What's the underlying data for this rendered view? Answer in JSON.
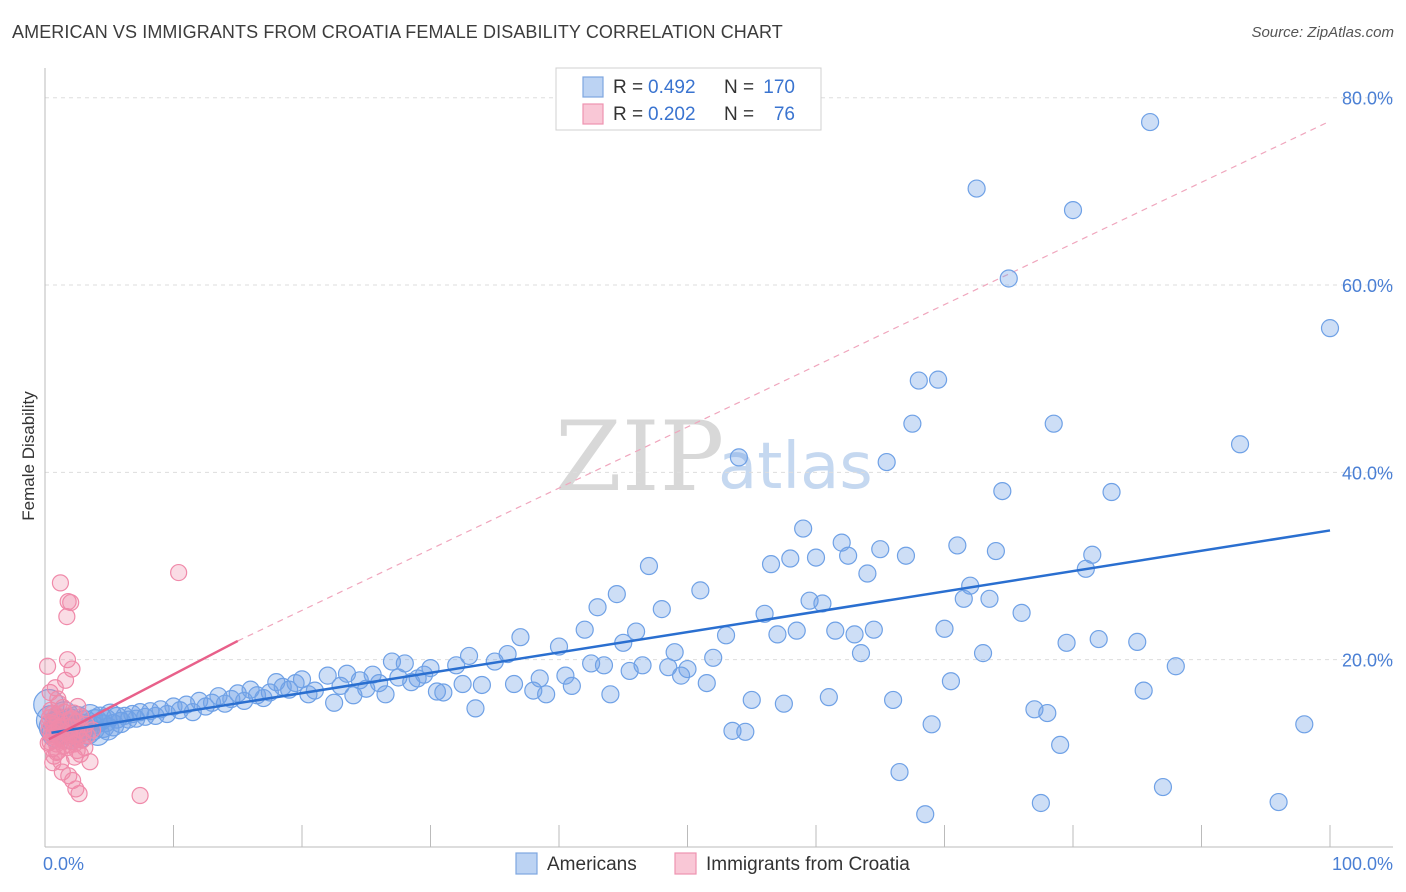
{
  "header": {
    "title": "AMERICAN VS IMMIGRANTS FROM CROATIA FEMALE DISABILITY CORRELATION CHART",
    "source": "Source: ZipAtlas.com"
  },
  "watermark": {
    "zip": "ZIP",
    "atlas": "atlas"
  },
  "colors": {
    "americans": "#6fa1e6",
    "americans_line": "#2a6fd0",
    "croatia": "#f08aaa",
    "croatia_line": "#e8608a",
    "grid": "#dddddd",
    "axis_label": "#4a7fd4"
  },
  "legend": {
    "rows": [
      {
        "r_label": "R = ",
        "r_value": "0.492",
        "n_label": "N = ",
        "n_value": "170"
      },
      {
        "r_label": "R = ",
        "r_value": "0.202",
        "n_label": "N = ",
        "n_value": "76"
      }
    ]
  },
  "chart_data": {
    "type": "scatter",
    "title": "AMERICAN VS IMMIGRANTS FROM CROATIA FEMALE DISABILITY CORRELATION CHART",
    "xlabel": "",
    "ylabel": "Female Disability",
    "xlim": [
      0,
      100
    ],
    "ylim": [
      0,
      82
    ],
    "x_tick_labels": [
      "0.0%",
      "100.0%"
    ],
    "y_ticks": [
      20,
      40,
      60,
      80
    ],
    "y_tick_labels": [
      "20.0%",
      "40.0%",
      "60.0%",
      "80.0%"
    ],
    "grid": true,
    "legend_position": "top-center",
    "bottom_legend": [
      "Americans",
      "Immigrants from Croatia"
    ],
    "series": [
      {
        "name": "Americans",
        "R": 0.492,
        "N": 170,
        "trend": {
          "x": [
            0.5,
            100
          ],
          "y": [
            12.2,
            33.8
          ]
        },
        "points": [
          [
            0.3,
            15.2
          ],
          [
            0.5,
            13.5
          ],
          [
            0.7,
            12.8
          ],
          [
            0.9,
            12.2
          ],
          [
            1.1,
            13.1
          ],
          [
            1.3,
            12.5
          ],
          [
            1.5,
            14.0
          ],
          [
            1.7,
            12.6
          ],
          [
            1.9,
            13.3
          ],
          [
            2.1,
            11.9
          ],
          [
            2.3,
            12.4
          ],
          [
            2.5,
            13.6
          ],
          [
            2.7,
            12.0
          ],
          [
            2.9,
            12.8
          ],
          [
            3.1,
            13.2
          ],
          [
            3.3,
            12.3
          ],
          [
            3.5,
            13.9
          ],
          [
            3.7,
            12.7
          ],
          [
            3.9,
            13.4
          ],
          [
            4.1,
            12.1
          ],
          [
            4.3,
            13.7
          ],
          [
            4.5,
            12.9
          ],
          [
            4.7,
            13.5
          ],
          [
            4.9,
            12.6
          ],
          [
            5.1,
            14.1
          ],
          [
            5.3,
            13.0
          ],
          [
            5.6,
            13.8
          ],
          [
            5.9,
            13.3
          ],
          [
            6.2,
            14.0
          ],
          [
            6.5,
            13.6
          ],
          [
            6.8,
            14.2
          ],
          [
            7.1,
            13.7
          ],
          [
            7.4,
            14.4
          ],
          [
            7.8,
            13.9
          ],
          [
            8.2,
            14.5
          ],
          [
            8.6,
            14.0
          ],
          [
            9.0,
            14.7
          ],
          [
            9.5,
            14.2
          ],
          [
            10,
            15.0
          ],
          [
            10.5,
            14.6
          ],
          [
            11,
            15.2
          ],
          [
            11.5,
            14.4
          ],
          [
            12,
            15.6
          ],
          [
            12.5,
            15.0
          ],
          [
            13,
            15.4
          ],
          [
            13.5,
            16.1
          ],
          [
            14,
            15.3
          ],
          [
            14.5,
            15.8
          ],
          [
            15,
            16.4
          ],
          [
            15.5,
            15.6
          ],
          [
            16,
            16.8
          ],
          [
            16.5,
            16.2
          ],
          [
            17,
            15.9
          ],
          [
            17.5,
            16.5
          ],
          [
            18,
            17.6
          ],
          [
            18.5,
            17.1
          ],
          [
            19,
            16.8
          ],
          [
            19.5,
            17.5
          ],
          [
            20,
            17.9
          ],
          [
            20.5,
            16.3
          ],
          [
            21,
            16.7
          ],
          [
            22,
            18.3
          ],
          [
            22.5,
            15.4
          ],
          [
            23,
            17.2
          ],
          [
            23.5,
            18.5
          ],
          [
            24,
            16.2
          ],
          [
            24.5,
            17.8
          ],
          [
            25,
            16.9
          ],
          [
            25.5,
            18.4
          ],
          [
            26,
            17.5
          ],
          [
            26.5,
            16.3
          ],
          [
            27,
            19.8
          ],
          [
            27.5,
            18.1
          ],
          [
            28,
            19.6
          ],
          [
            28.5,
            17.6
          ],
          [
            29,
            18.0
          ],
          [
            29.5,
            18.4
          ],
          [
            30,
            19.1
          ],
          [
            30.5,
            16.6
          ],
          [
            31,
            16.5
          ],
          [
            32,
            19.4
          ],
          [
            32.5,
            17.4
          ],
          [
            33,
            20.4
          ],
          [
            33.5,
            14.8
          ],
          [
            34,
            17.3
          ],
          [
            35,
            19.8
          ],
          [
            36,
            20.6
          ],
          [
            36.5,
            17.4
          ],
          [
            37,
            22.4
          ],
          [
            38,
            16.7
          ],
          [
            38.5,
            18.0
          ],
          [
            39,
            16.3
          ],
          [
            40,
            21.4
          ],
          [
            40.5,
            18.3
          ],
          [
            41,
            17.2
          ],
          [
            42,
            23.2
          ],
          [
            42.5,
            19.6
          ],
          [
            43,
            25.6
          ],
          [
            43.5,
            19.4
          ],
          [
            44,
            16.3
          ],
          [
            44.5,
            27.0
          ],
          [
            45,
            21.8
          ],
          [
            45.5,
            18.8
          ],
          [
            46,
            23.0
          ],
          [
            46.5,
            19.4
          ],
          [
            47,
            30.0
          ],
          [
            48,
            25.4
          ],
          [
            48.5,
            19.2
          ],
          [
            49,
            20.8
          ],
          [
            49.5,
            18.3
          ],
          [
            50,
            19.0
          ],
          [
            51,
            27.4
          ],
          [
            51.5,
            17.5
          ],
          [
            52,
            20.2
          ],
          [
            53,
            22.6
          ],
          [
            53.5,
            12.4
          ],
          [
            54,
            41.6
          ],
          [
            54.5,
            12.3
          ],
          [
            55,
            15.7
          ],
          [
            56,
            24.9
          ],
          [
            56.5,
            30.2
          ],
          [
            57,
            22.7
          ],
          [
            57.5,
            15.3
          ],
          [
            58,
            30.8
          ],
          [
            58.5,
            23.1
          ],
          [
            59,
            34.0
          ],
          [
            59.5,
            26.3
          ],
          [
            60,
            30.9
          ],
          [
            60.5,
            26.0
          ],
          [
            61,
            16.0
          ],
          [
            61.5,
            23.1
          ],
          [
            62,
            32.5
          ],
          [
            62.5,
            31.1
          ],
          [
            63,
            22.7
          ],
          [
            63.5,
            20.7
          ],
          [
            64,
            29.2
          ],
          [
            64.5,
            23.2
          ],
          [
            65,
            31.8
          ],
          [
            65.5,
            41.1
          ],
          [
            66,
            15.7
          ],
          [
            66.5,
            8.0
          ],
          [
            67,
            31.1
          ],
          [
            67.5,
            45.2
          ],
          [
            68,
            49.8
          ],
          [
            68.5,
            3.5
          ],
          [
            69,
            13.1
          ],
          [
            69.5,
            49.9
          ],
          [
            70,
            23.3
          ],
          [
            70.5,
            17.7
          ],
          [
            71,
            32.2
          ],
          [
            71.5,
            26.5
          ],
          [
            72,
            27.9
          ],
          [
            72.5,
            70.3
          ],
          [
            73,
            20.7
          ],
          [
            73.5,
            26.5
          ],
          [
            74,
            31.6
          ],
          [
            74.5,
            38.0
          ],
          [
            75,
            60.7
          ],
          [
            76,
            25.0
          ],
          [
            77,
            14.7
          ],
          [
            77.5,
            4.7
          ],
          [
            78,
            14.3
          ],
          [
            78.5,
            45.2
          ],
          [
            79,
            10.9
          ],
          [
            79.5,
            21.8
          ],
          [
            80,
            68.0
          ],
          [
            81,
            29.7
          ],
          [
            81.5,
            31.2
          ],
          [
            82,
            22.2
          ],
          [
            83,
            37.9
          ],
          [
            85,
            21.9
          ],
          [
            85.5,
            16.7
          ],
          [
            86,
            77.4
          ],
          [
            87,
            6.4
          ],
          [
            88,
            19.3
          ],
          [
            93,
            43.0
          ],
          [
            96,
            4.8
          ],
          [
            98,
            13.1
          ],
          [
            100,
            55.4
          ]
        ]
      },
      {
        "name": "Immigrants from Croatia",
        "R": 0.202,
        "N": 76,
        "trend": {
          "x": [
            0.3,
            15
          ],
          "y": [
            11.5,
            22.0
          ]
        },
        "points": [
          [
            0.2,
            19.3
          ],
          [
            0.3,
            12.5
          ],
          [
            0.35,
            13.8
          ],
          [
            0.4,
            11.2
          ],
          [
            0.45,
            14.6
          ],
          [
            0.5,
            12.0
          ],
          [
            0.55,
            10.5
          ],
          [
            0.6,
            13.2
          ],
          [
            0.65,
            11.8
          ],
          [
            0.7,
            9.7
          ],
          [
            0.75,
            12.9
          ],
          [
            0.8,
            17.0
          ],
          [
            0.85,
            14.1
          ],
          [
            0.9,
            11.0
          ],
          [
            0.95,
            13.5
          ],
          [
            1.0,
            10.2
          ],
          [
            1.05,
            12.4
          ],
          [
            1.1,
            15.3
          ],
          [
            1.15,
            11.6
          ],
          [
            1.2,
            28.2
          ],
          [
            1.25,
            9.1
          ],
          [
            1.3,
            12.7
          ],
          [
            1.35,
            8.0
          ],
          [
            1.4,
            14.9
          ],
          [
            1.45,
            10.8
          ],
          [
            1.5,
            13.0
          ],
          [
            1.55,
            11.3
          ],
          [
            1.6,
            17.8
          ],
          [
            1.65,
            12.2
          ],
          [
            1.7,
            24.6
          ],
          [
            1.75,
            20.0
          ],
          [
            1.8,
            26.2
          ],
          [
            1.85,
            7.6
          ],
          [
            1.9,
            13.6
          ],
          [
            1.95,
            10.9
          ],
          [
            2.0,
            26.1
          ],
          [
            2.05,
            12.8
          ],
          [
            2.1,
            19.0
          ],
          [
            2.15,
            7.1
          ],
          [
            2.2,
            11.5
          ],
          [
            2.25,
            14.3
          ],
          [
            2.3,
            9.6
          ],
          [
            2.35,
            12.1
          ],
          [
            2.4,
            6.2
          ],
          [
            2.45,
            13.4
          ],
          [
            2.5,
            10.3
          ],
          [
            2.55,
            15.0
          ],
          [
            2.6,
            11.7
          ],
          [
            2.65,
            5.7
          ],
          [
            2.7,
            12.6
          ],
          [
            2.75,
            9.9
          ],
          [
            2.8,
            13.9
          ],
          [
            2.9,
            11.4
          ],
          [
            3.0,
            12.3
          ],
          [
            3.1,
            10.6
          ],
          [
            3.2,
            13.1
          ],
          [
            3.3,
            11.9
          ],
          [
            3.5,
            9.1
          ],
          [
            3.7,
            12.5
          ],
          [
            0.25,
            11.1
          ],
          [
            0.3,
            13.3
          ],
          [
            0.55,
            14.2
          ],
          [
            0.7,
            12.2
          ],
          [
            0.9,
            10.1
          ],
          [
            1.1,
            12.8
          ],
          [
            1.3,
            11.4
          ],
          [
            1.5,
            14.4
          ],
          [
            1.7,
            10.6
          ],
          [
            1.9,
            12.0
          ],
          [
            2.1,
            13.7
          ],
          [
            2.3,
            11.0
          ],
          [
            7.4,
            5.5
          ],
          [
            10.4,
            29.3
          ],
          [
            0.4,
            16.5
          ],
          [
            0.6,
            9.0
          ],
          [
            1.0,
            15.8
          ]
        ]
      }
    ]
  }
}
